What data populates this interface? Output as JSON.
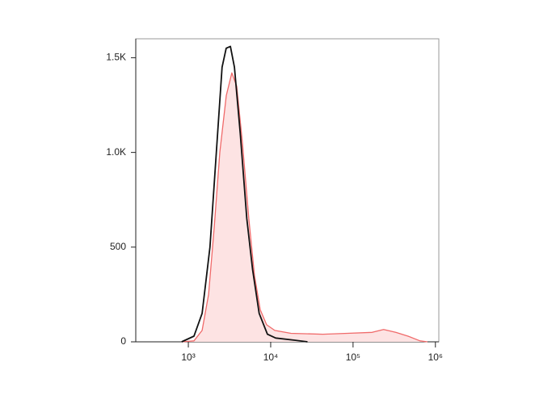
{
  "chart_data": {
    "type": "line",
    "xscale": "log",
    "xlim": [
      230,
      1100000
    ],
    "ylim": [
      0,
      1600
    ],
    "xticks": [
      {
        "value": 1000,
        "label": "10³"
      },
      {
        "value": 10000,
        "label": "10⁴"
      },
      {
        "value": 100000,
        "label": "10⁵"
      },
      {
        "value": 1000000,
        "label": "10⁶"
      }
    ],
    "yticks": [
      0,
      500,
      {
        "value": 1000,
        "label": "1.0K"
      },
      {
        "value": 1500,
        "label": "1.5K"
      }
    ],
    "series": [
      {
        "color": "#f06a6a",
        "fill": "#fde3e3",
        "x": [
          830,
          1170,
          1470,
          1760,
          2060,
          2410,
          2890,
          3380,
          3870,
          4540,
          5430,
          6360,
          7460,
          8930,
          11200,
          17600,
          43000,
          85000,
          170000,
          235000,
          330000,
          465000,
          650000,
          800000
        ],
        "values": [
          0,
          5,
          60,
          250,
          600,
          1000,
          1300,
          1420,
          1350,
          1050,
          650,
          350,
          170,
          90,
          60,
          45,
          40,
          45,
          50,
          65,
          50,
          30,
          5,
          0
        ]
      },
      {
        "color": "#111111",
        "x": [
          830,
          1170,
          1470,
          1830,
          2190,
          2570,
          2880,
          3240,
          3630,
          4270,
          5130,
          6030,
          7240,
          9120,
          11500,
          20000,
          28000
        ],
        "values": [
          0,
          30,
          150,
          500,
          1000,
          1450,
          1550,
          1560,
          1450,
          1100,
          650,
          380,
          150,
          40,
          20,
          8,
          0
        ]
      }
    ]
  }
}
